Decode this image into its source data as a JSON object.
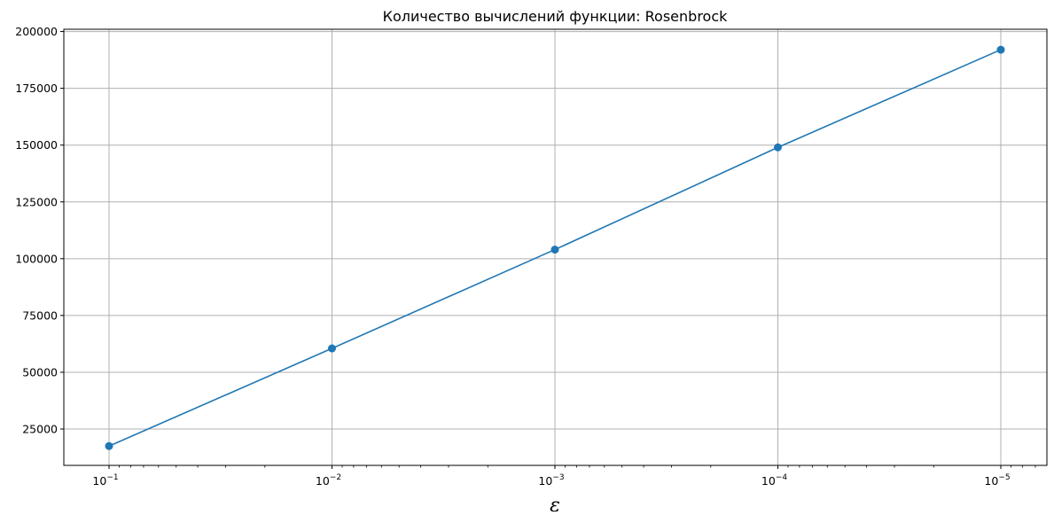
{
  "chart_data": {
    "type": "line",
    "title": "Количество вычислений функции: Rosenbrock",
    "xlabel": "ε",
    "ylabel": "",
    "x_scale": "log",
    "x_reversed": true,
    "x": [
      0.1,
      0.01,
      0.001,
      0.0001,
      1e-05
    ],
    "x_tick_labels": [
      {
        "base": "10",
        "exp": "−1"
      },
      {
        "base": "10",
        "exp": "−2"
      },
      {
        "base": "10",
        "exp": "−3"
      },
      {
        "base": "10",
        "exp": "−4"
      },
      {
        "base": "10",
        "exp": "−5"
      }
    ],
    "y_ticks": [
      25000,
      50000,
      75000,
      100000,
      125000,
      150000,
      175000,
      200000
    ],
    "ylim": [
      9000,
      201000
    ],
    "grid": true,
    "series": [
      {
        "values": [
          17500,
          60500,
          104000,
          149000,
          192000
        ],
        "color": "#1f77b4",
        "marker": "circle"
      }
    ]
  }
}
